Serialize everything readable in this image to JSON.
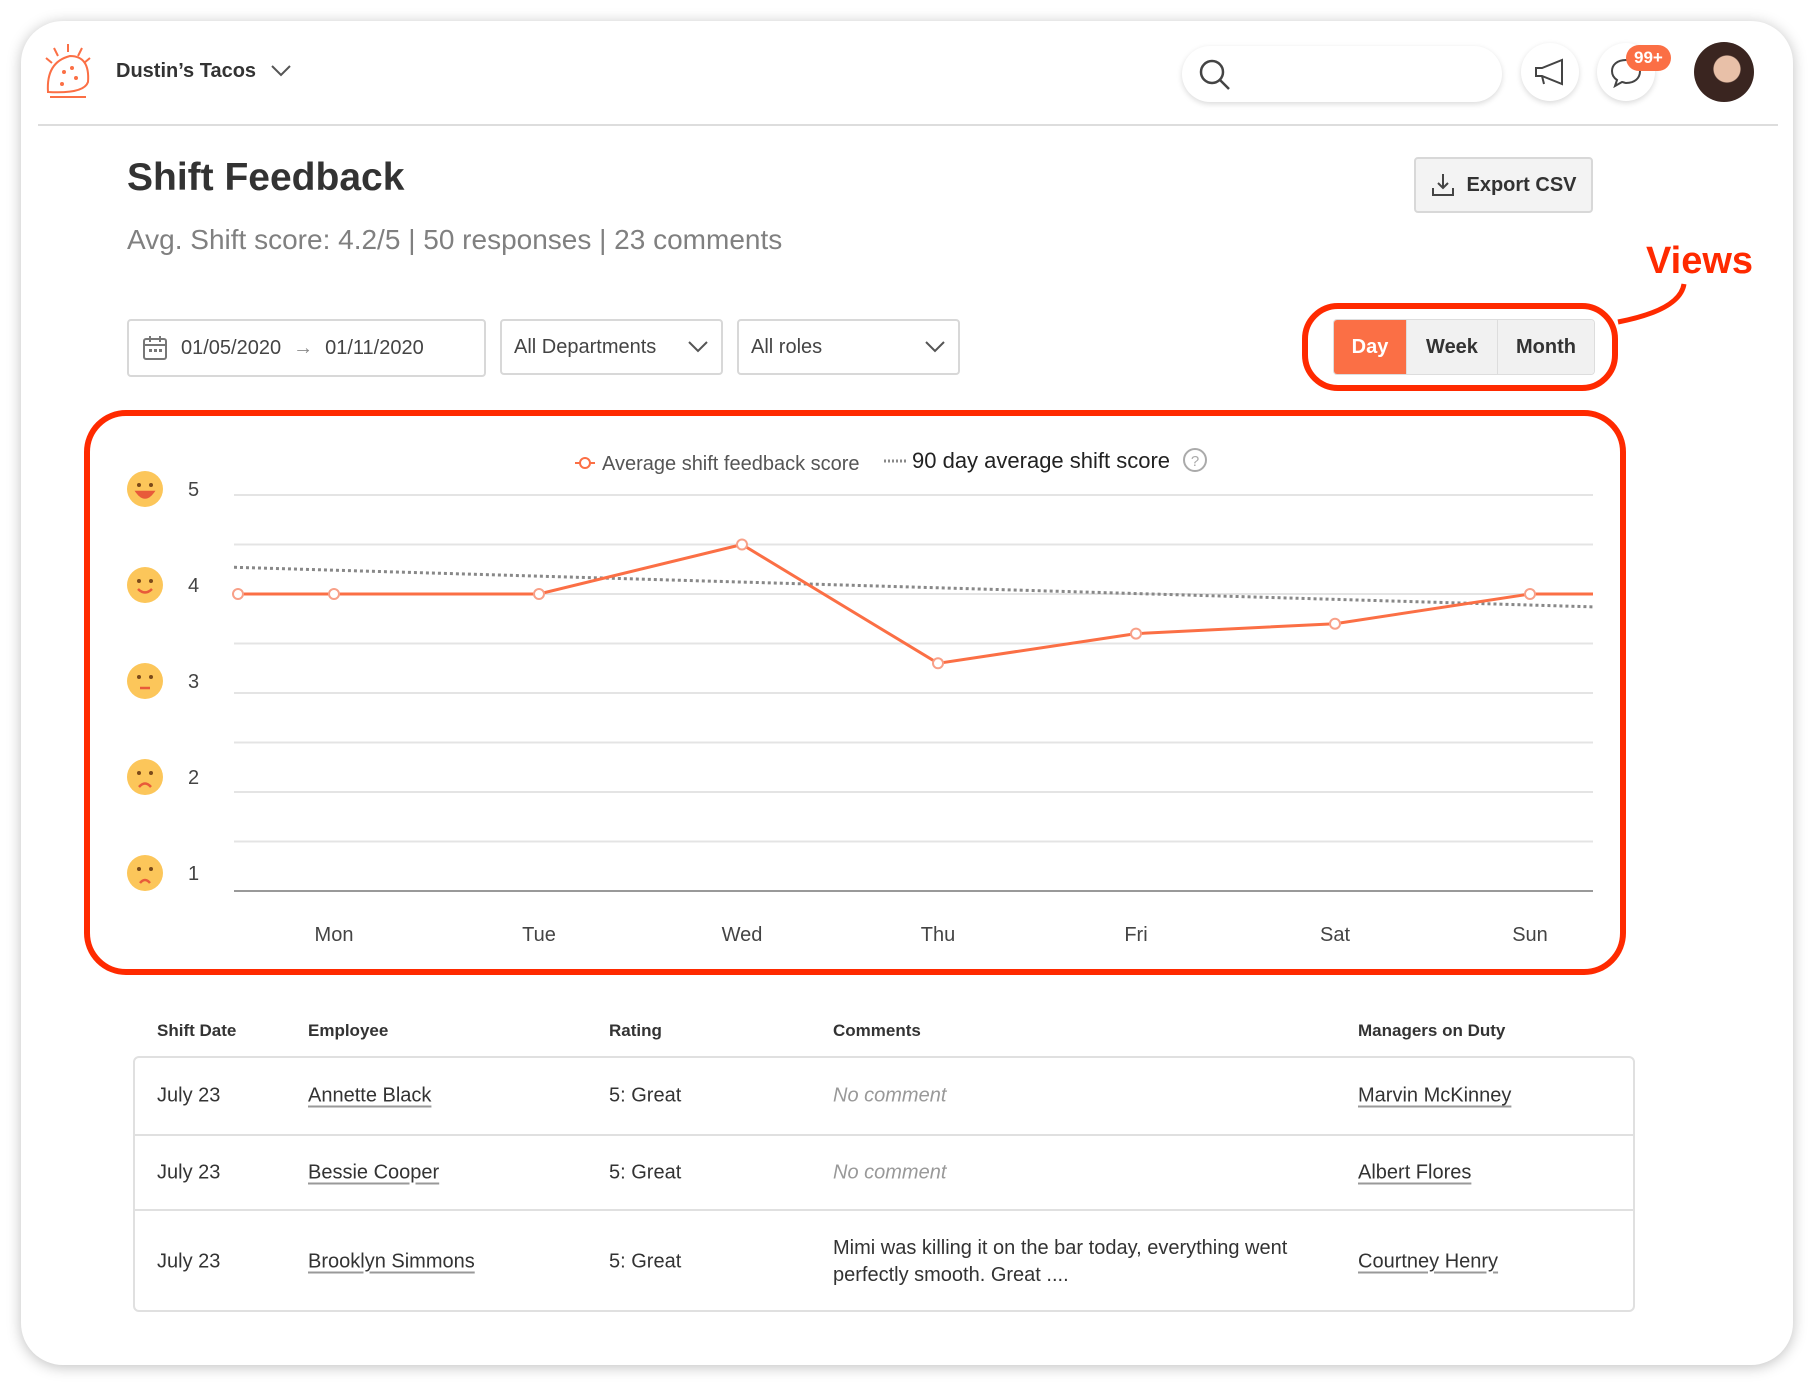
{
  "header": {
    "org_name": "Dustin’s Tacos",
    "badge_count": "99+",
    "search_placeholder": ""
  },
  "page": {
    "title": "Shift Feedback",
    "summary": "Avg. Shift score: 4.2/5 | 50 responses | 23 comments",
    "export_label": "Export CSV"
  },
  "filters": {
    "date_start": "01/05/2020",
    "date_end": "01/11/2020",
    "department": "All Departments",
    "role": "All roles"
  },
  "views": {
    "annotation": "Views",
    "options": [
      "Day",
      "Week",
      "Month"
    ],
    "selected": "Day"
  },
  "colors": {
    "accent": "#fb6f45",
    "annotation": "#ff2a00",
    "grid": "#e4e4e4"
  },
  "chart_data": {
    "type": "line",
    "categories": [
      "Mon",
      "Tue",
      "Wed",
      "Thu",
      "Fri",
      "Sat",
      "Sun"
    ],
    "y_ticks": [
      "5",
      "4",
      "3",
      "2",
      "1"
    ],
    "y_tick_icons": [
      "grinning-face-icon",
      "smiling-face-icon",
      "neutral-face-icon",
      "frowning-face-icon",
      "angry-face-icon"
    ],
    "ylim": [
      1,
      5
    ],
    "grid": true,
    "legend_position": "top-center",
    "series": [
      {
        "name": "Average shift feedback score",
        "style": "solid-markers",
        "color": "#fb6f45",
        "values": [
          4,
          4,
          4.5,
          3.3,
          3.6,
          3.7,
          4
        ]
      },
      {
        "name": "90 day average shift score",
        "style": "dotted",
        "color": "#888888",
        "start": 4.27,
        "end": 3.87
      }
    ]
  },
  "table": {
    "headers": [
      "Shift Date",
      "Employee",
      "Rating",
      "Comments",
      "Managers on Duty"
    ],
    "rows": [
      {
        "date": "July 23",
        "employee": "Annette Black",
        "rating": "5: Great",
        "comment": "No comment",
        "comment_empty": true,
        "manager": "Marvin McKinney"
      },
      {
        "date": "July 23",
        "employee": "Bessie Cooper",
        "rating": "5: Great",
        "comment": "No comment",
        "comment_empty": true,
        "manager": "Albert Flores"
      },
      {
        "date": "July 23",
        "employee": "Brooklyn Simmons",
        "rating": "5: Great",
        "comment": "Mimi was killing it on the bar today, everything went perfectly smooth. Great ....",
        "comment_empty": false,
        "manager": "Courtney Henry"
      }
    ]
  }
}
